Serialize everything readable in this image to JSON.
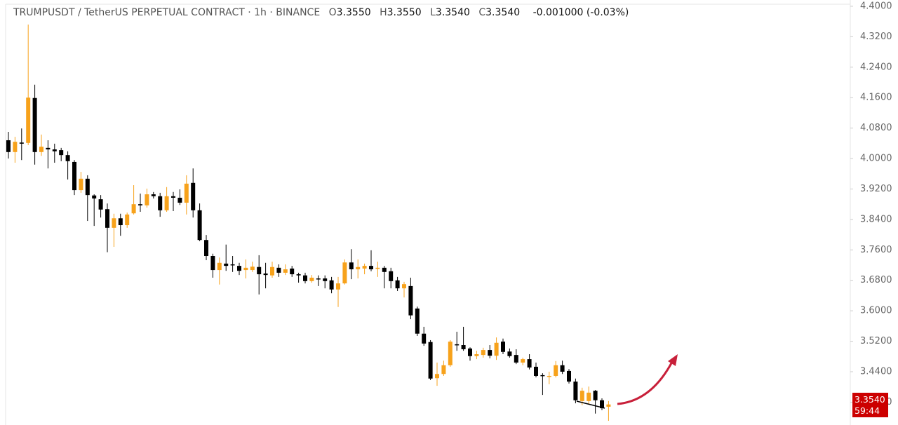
{
  "chart_data": {
    "type": "candlestick",
    "title": "TRUMPUSDT / TetherUS PERPETUAL CONTRACT · 1h · BINANCE",
    "legend_values": [
      {
        "label": "O",
        "value": "3.3550"
      },
      {
        "label": "H",
        "value": "3.3550"
      },
      {
        "label": "L",
        "value": "3.3540"
      },
      {
        "label": "C",
        "value": "3.3540"
      }
    ],
    "change": "-0.001000 (-0.03%)",
    "last_price": "3.3540",
    "countdown": "59:44",
    "up_color": "#f7a21b",
    "down_color": "#000000",
    "ylim": [
      3.3,
      4.41
    ],
    "yticks": [
      {
        "value": 4.4,
        "label": "4.4000"
      },
      {
        "value": 4.32,
        "label": "4.3200"
      },
      {
        "value": 4.24,
        "label": "4.2400"
      },
      {
        "value": 4.16,
        "label": "4.1600"
      },
      {
        "value": 4.08,
        "label": "4.0800"
      },
      {
        "value": 4.0,
        "label": "4.0000"
      },
      {
        "value": 3.92,
        "label": "3.9200"
      },
      {
        "value": 3.84,
        "label": "3.8400"
      },
      {
        "value": 3.76,
        "label": "3.7600"
      },
      {
        "value": 3.68,
        "label": "3.6800"
      },
      {
        "value": 3.6,
        "label": "3.6000"
      },
      {
        "value": 3.52,
        "label": "3.5200"
      },
      {
        "value": 3.44,
        "label": "3.4400"
      },
      {
        "value": 3.36,
        "label": "3.3600"
      }
    ],
    "open": [
      4.048,
      4.017,
      4.042,
      4.041,
      4.159,
      4.017,
      4.028,
      4.024,
      4.022,
      4.009,
      3.991,
      3.917,
      3.947,
      3.903,
      3.893,
      3.867,
      3.818,
      3.843,
      3.825,
      3.856,
      3.88,
      3.877,
      3.906,
      3.901,
      3.864,
      3.901,
      3.897,
      3.884,
      3.936,
      3.864,
      3.786,
      3.744,
      3.707,
      3.724,
      3.722,
      3.718,
      3.707,
      3.707,
      3.715,
      3.698,
      3.693,
      3.713,
      3.7,
      3.711,
      3.696,
      3.693,
      3.678,
      3.685,
      3.685,
      3.68,
      3.656,
      3.672,
      3.727,
      3.709,
      3.711,
      3.718,
      3.711,
      3.713,
      3.704,
      3.68,
      3.659,
      3.665,
      3.606,
      3.54,
      3.518,
      3.423,
      3.434,
      3.457,
      3.512,
      3.51,
      3.501,
      3.481,
      3.484,
      3.497,
      3.482,
      3.519,
      3.493,
      3.484,
      3.464,
      3.473,
      3.453,
      3.431,
      3.427,
      3.429,
      3.457,
      3.442,
      3.414,
      3.363,
      3.363,
      3.39,
      3.365,
      3.348
    ],
    "high": [
      4.07,
      4.057,
      4.079,
      4.352,
      4.194,
      4.063,
      4.048,
      4.039,
      4.028,
      4.019,
      3.996,
      3.965,
      3.956,
      3.906,
      3.904,
      3.882,
      3.855,
      3.855,
      3.858,
      3.93,
      3.908,
      3.921,
      3.912,
      3.91,
      3.925,
      3.912,
      3.919,
      3.956,
      3.974,
      3.882,
      3.799,
      3.75,
      3.74,
      3.774,
      3.744,
      3.726,
      3.735,
      3.729,
      3.746,
      3.726,
      3.729,
      3.722,
      3.722,
      3.718,
      3.7,
      3.7,
      3.694,
      3.693,
      3.693,
      3.689,
      3.689,
      3.735,
      3.762,
      3.735,
      3.724,
      3.759,
      3.729,
      3.718,
      3.713,
      3.689,
      3.676,
      3.687,
      3.611,
      3.558,
      3.523,
      3.464,
      3.469,
      3.523,
      3.545,
      3.558,
      3.504,
      3.495,
      3.503,
      3.51,
      3.53,
      3.527,
      3.501,
      3.499,
      3.477,
      3.486,
      3.464,
      3.436,
      3.44,
      3.468,
      3.469,
      3.447,
      3.422,
      3.398,
      3.401,
      3.392,
      3.37,
      3.363
    ],
    "low": [
      4.0,
      3.989,
      3.996,
      4.035,
      3.984,
      4.007,
      3.974,
      3.989,
      3.993,
      3.945,
      3.904,
      3.91,
      3.836,
      3.823,
      3.845,
      3.754,
      3.768,
      3.797,
      3.818,
      3.853,
      3.86,
      3.871,
      3.895,
      3.847,
      3.86,
      3.862,
      3.878,
      3.853,
      3.845,
      3.783,
      3.733,
      3.687,
      3.669,
      3.705,
      3.702,
      3.694,
      3.685,
      3.702,
      3.643,
      3.659,
      3.687,
      3.689,
      3.694,
      3.689,
      3.674,
      3.672,
      3.674,
      3.665,
      3.659,
      3.646,
      3.61,
      3.669,
      3.683,
      3.685,
      3.696,
      3.704,
      3.689,
      3.659,
      3.659,
      3.652,
      3.635,
      3.578,
      3.534,
      3.508,
      3.418,
      3.403,
      3.429,
      3.453,
      3.495,
      3.495,
      3.469,
      3.473,
      3.477,
      3.475,
      3.471,
      3.486,
      3.477,
      3.46,
      3.457,
      3.446,
      3.425,
      3.379,
      3.407,
      3.425,
      3.434,
      3.409,
      3.357,
      3.352,
      3.355,
      3.33,
      3.339,
      3.311
    ],
    "close": [
      4.017,
      4.044,
      4.039,
      4.16,
      4.017,
      4.031,
      4.024,
      4.019,
      4.009,
      3.993,
      3.917,
      3.947,
      3.904,
      3.895,
      3.866,
      3.818,
      3.843,
      3.825,
      3.853,
      3.88,
      3.877,
      3.906,
      3.901,
      3.864,
      3.901,
      3.897,
      3.884,
      3.934,
      3.864,
      3.786,
      3.744,
      3.707,
      3.726,
      3.718,
      3.72,
      3.705,
      3.713,
      3.716,
      3.696,
      3.694,
      3.715,
      3.7,
      3.709,
      3.696,
      3.693,
      3.678,
      3.687,
      3.683,
      3.678,
      3.656,
      3.672,
      3.727,
      3.709,
      3.715,
      3.718,
      3.709,
      3.713,
      3.702,
      3.678,
      3.659,
      3.67,
      3.588,
      3.54,
      3.514,
      3.422,
      3.434,
      3.457,
      3.519,
      3.51,
      3.499,
      3.481,
      3.486,
      3.497,
      3.482,
      3.516,
      3.492,
      3.481,
      3.464,
      3.473,
      3.451,
      3.429,
      3.429,
      3.429,
      3.457,
      3.44,
      3.414,
      3.365,
      3.39,
      3.385,
      3.365,
      3.344,
      3.354
    ]
  }
}
